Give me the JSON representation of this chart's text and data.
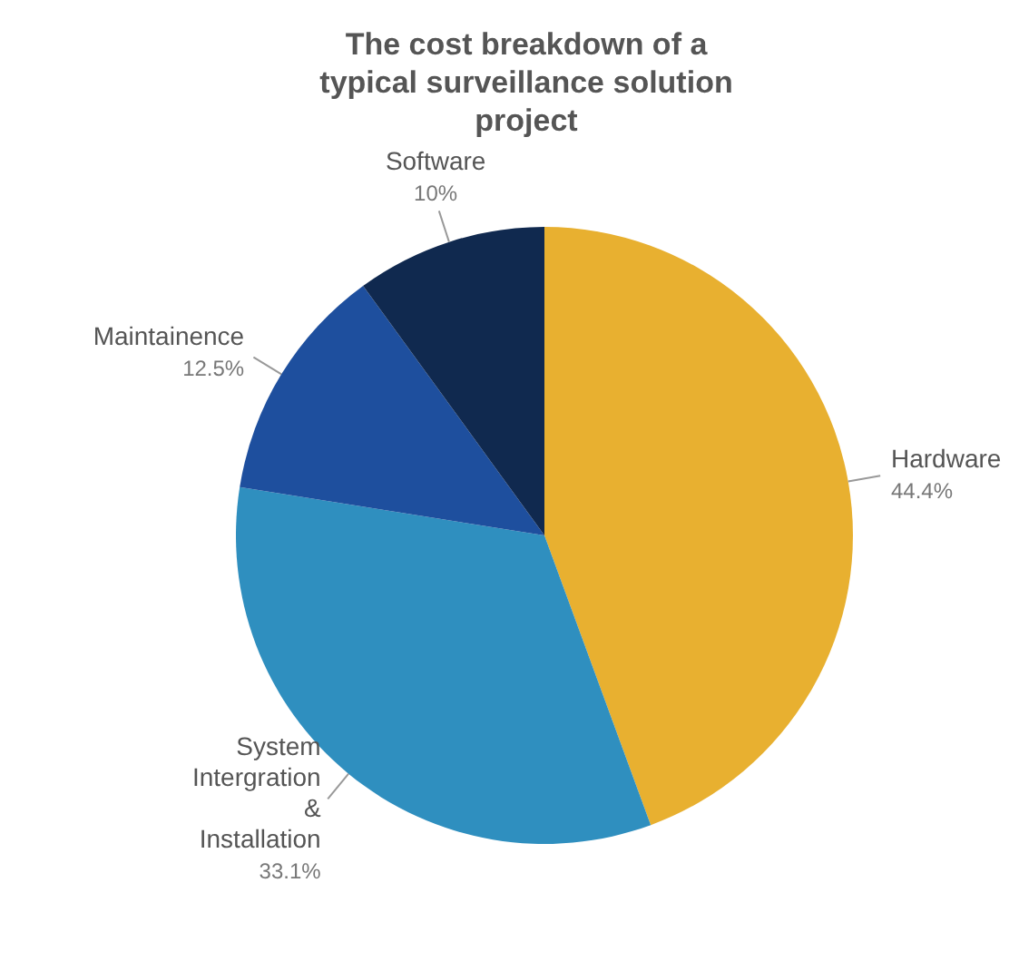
{
  "chart_data": {
    "type": "pie",
    "title": "The cost breakdown of a typical surveillance solution project",
    "categories": [
      "Hardware",
      "System Intergration & Installation",
      "Maintainence",
      "Software"
    ],
    "values": [
      44.4,
      33.1,
      12.5,
      10
    ],
    "colors": [
      "#e8b030",
      "#2f8fbf",
      "#1e4f9e",
      "#10294f"
    ],
    "value_labels": [
      "44.4%",
      "33.1%",
      "12.5%",
      "10%"
    ]
  }
}
